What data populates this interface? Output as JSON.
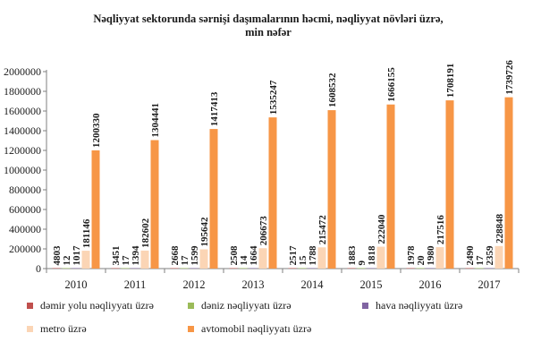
{
  "chart_data": {
    "type": "bar",
    "title_line1": "Nəqliyyat sektorunda sərnişi daşımalarının həcmi, nəqliyyat növləri üzrə,",
    "title_line2": "min nəfər",
    "categories": [
      "2010",
      "2011",
      "2012",
      "2013",
      "2014",
      "2015",
      "2016",
      "2017"
    ],
    "ylim": [
      0,
      2000000
    ],
    "yticks": [
      "0",
      "200000",
      "400000",
      "600000",
      "800000",
      "1000000",
      "1200000",
      "1400000",
      "1600000",
      "1800000",
      "2000000"
    ],
    "grid": false,
    "legend_position": "bottom",
    "series": [
      {
        "name": "dəmir yolu nəqliyyatı üzrə",
        "color": "#c0504d",
        "values": [
          4803,
          3451,
          2668,
          2508,
          2517,
          1883,
          1978,
          2490
        ]
      },
      {
        "name": "dəniz nəqliyyatı üzrə",
        "color": "#9bbb59",
        "values": [
          12,
          17,
          17,
          14,
          15,
          9,
          20,
          17
        ]
      },
      {
        "name": "hava nəqliyyatı üzrə",
        "color": "#8064a2",
        "values": [
          1017,
          1394,
          1599,
          1664,
          1788,
          1818,
          1980,
          2359
        ]
      },
      {
        "name": "metro üzrə",
        "color": "#fbd5b5",
        "values": [
          181146,
          182602,
          195642,
          206673,
          215472,
          222040,
          217516,
          228848
        ]
      },
      {
        "name": "avtomobil nəqliyyatı üzrə",
        "color": "#f79646",
        "values": [
          1200330,
          1304441,
          1417413,
          1535247,
          1608532,
          1666155,
          1708191,
          1739726
        ]
      }
    ]
  }
}
